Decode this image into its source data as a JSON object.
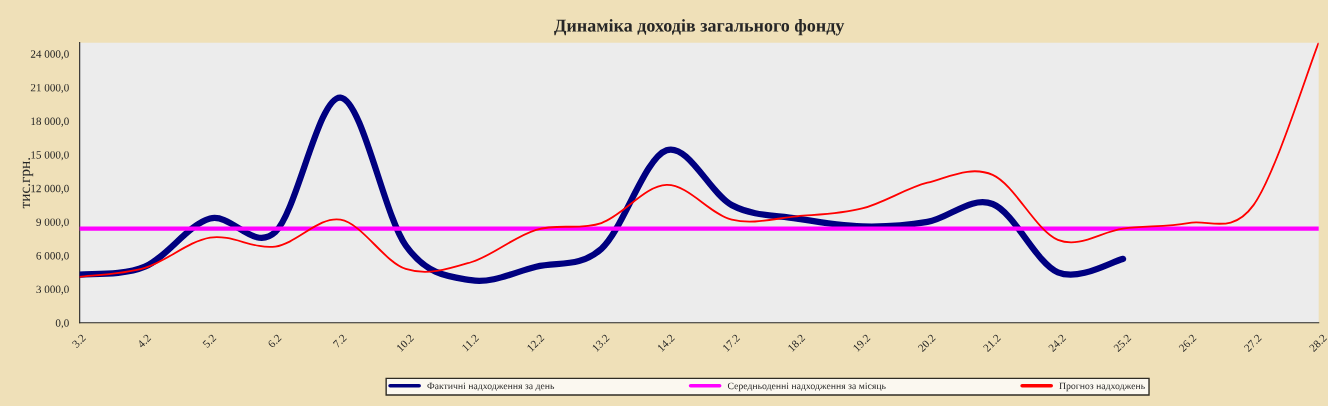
{
  "chart_data": {
    "type": "line",
    "title": "Динаміка доходів загального фонду",
    "ylabel": "тис.грн.",
    "categories": [
      "3.2",
      "4.2",
      "5.2",
      "6.2",
      "7.2",
      "10.2",
      "11.2",
      "12.2",
      "13.2",
      "14.2",
      "17.2",
      "18.2",
      "19.2",
      "20.2",
      "21.2",
      "24.2",
      "25.2",
      "26.2",
      "27.2",
      "28.2"
    ],
    "series": [
      {
        "name": "Фактичні надходження за день",
        "color": "#000080",
        "values": [
          4300,
          5000,
          9300,
          8100,
          20100,
          6900,
          3800,
          5000,
          6600,
          15400,
          10500,
          9300,
          8600,
          9000,
          10600,
          4500,
          5700,
          null,
          null,
          null
        ]
      },
      {
        "name": "Середньоденні надходження за місяць",
        "color": "#ff00ff",
        "values": [
          8400,
          8400,
          8400,
          8400,
          8400,
          8400,
          8400,
          8400,
          8400,
          8400,
          8400,
          8400,
          8400,
          8400,
          8400,
          8400,
          8400,
          8400,
          8400,
          8400
        ]
      },
      {
        "name": "Прогноз надходжень",
        "color": "#ff0000",
        "values": [
          4100,
          4900,
          7600,
          6800,
          9200,
          4800,
          5400,
          8300,
          8900,
          12300,
          9200,
          9500,
          10200,
          12500,
          13200,
          7400,
          8400,
          8900,
          10500,
          25000
        ]
      }
    ],
    "ylim": [
      0,
      25000
    ],
    "yticks": [
      {
        "value": 0,
        "label": "0,0"
      },
      {
        "value": 3000,
        "label": "3 000,0"
      },
      {
        "value": 6000,
        "label": "6 000,0"
      },
      {
        "value": 9000,
        "label": "9 000,0"
      },
      {
        "value": 12000,
        "label": "12 000,0"
      },
      {
        "value": 15000,
        "label": "15 000,0"
      },
      {
        "value": 18000,
        "label": "18 000,0"
      },
      {
        "value": 21000,
        "label": "21 000,0"
      },
      {
        "value": 24000,
        "label": "24 000,0"
      }
    ],
    "grid": false,
    "legend": "bottom",
    "marker": "none",
    "line_style": "solid"
  }
}
